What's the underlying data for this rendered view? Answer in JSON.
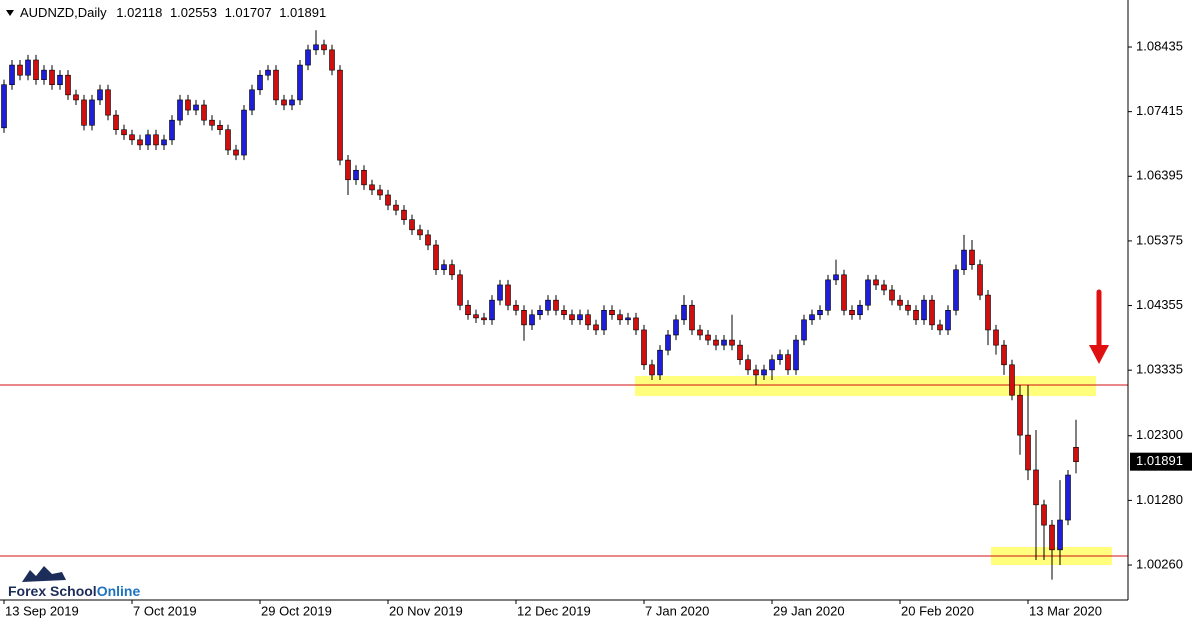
{
  "chart_data": {
    "type": "candlestick",
    "symbol": "AUDNZD,Daily",
    "up_color": "#1f1fd8",
    "down_color": "#d01010",
    "level_color": "#d01010",
    "zone_color": "#ffff66",
    "ylim": [
      0.99708,
      1.09177
    ],
    "yticks": [
      1.08435,
      1.07415,
      1.06395,
      1.05375,
      1.04355,
      1.03335,
      {
        "value": 1.023,
        "label": "1.02300"
      },
      {
        "value": 1.0128,
        "label": "1.01280"
      },
      {
        "value": 1.0026,
        "label": "1.00260"
      }
    ],
    "levels": [
      1.03101,
      1.00403
    ],
    "zones": [
      {
        "low": 1.02927,
        "high": 1.03243
      },
      {
        "low": 1.0026,
        "high": 1.00545
      }
    ],
    "watermark": [
      "Forex School",
      "Online"
    ],
    "categories": [
      "13 Sep 2019",
      null,
      null,
      null,
      null,
      null,
      null,
      null,
      null,
      null,
      null,
      null,
      null,
      null,
      null,
      null,
      "7 Oct 2019",
      null,
      null,
      null,
      null,
      null,
      null,
      null,
      null,
      null,
      null,
      null,
      null,
      null,
      null,
      null,
      "29 Oct 2019",
      null,
      null,
      null,
      null,
      null,
      null,
      null,
      null,
      null,
      null,
      null,
      null,
      null,
      null,
      null,
      "20 Nov 2019",
      null,
      null,
      null,
      null,
      null,
      null,
      null,
      null,
      null,
      null,
      null,
      null,
      null,
      null,
      null,
      "12 Dec 2019",
      null,
      null,
      null,
      null,
      null,
      null,
      null,
      null,
      null,
      null,
      null,
      null,
      null,
      null,
      null,
      "7 Jan 2020",
      null,
      null,
      null,
      null,
      null,
      null,
      null,
      null,
      null,
      null,
      null,
      null,
      null,
      null,
      null,
      "29 Jan 2020",
      null,
      null,
      null,
      null,
      null,
      null,
      null,
      null,
      null,
      null,
      null,
      null,
      null,
      null,
      null,
      "20 Feb 2020",
      null,
      null,
      null,
      null,
      null,
      null,
      null,
      null,
      null,
      null,
      null,
      null,
      null,
      null,
      null,
      "13 Mar 2020",
      null,
      null,
      null,
      null,
      null,
      null
    ],
    "open": [
      1.0716,
      1.0784,
      1.0815,
      1.0799,
      1.0823,
      1.0792,
      1.0807,
      1.0784,
      1.0799,
      1.0768,
      1.076,
      1.072,
      1.076,
      1.0776,
      1.0736,
      1.0713,
      1.0705,
      1.0697,
      1.0689,
      1.0705,
      1.0689,
      1.0697,
      1.0728,
      1.076,
      1.0744,
      1.0752,
      1.0728,
      1.072,
      1.0713,
      1.0681,
      1.0673,
      1.0744,
      1.0776,
      1.0799,
      1.0807,
      1.076,
      1.0752,
      1.076,
      1.0815,
      1.0839,
      1.0847,
      1.0839,
      1.0807,
      1.0665,
      1.0634,
      1.0649,
      1.0626,
      1.0618,
      1.061,
      1.0594,
      1.0586,
      1.0571,
      1.0555,
      1.0547,
      1.0531,
      1.0492,
      1.05,
      1.0484,
      1.0436,
      1.0421,
      1.0416,
      1.0413,
      1.0444,
      1.0468,
      1.0436,
      1.0428,
      1.0405,
      1.0421,
      1.0428,
      1.0444,
      1.0428,
      1.0421,
      1.0413,
      1.0421,
      1.0405,
      1.0397,
      1.0428,
      1.0421,
      1.0413,
      1.0416,
      1.0397,
      1.0342,
      1.0326,
      1.0365,
      1.0389,
      1.0413,
      1.0436,
      1.0397,
      1.0389,
      1.0381,
      1.0373,
      1.0381,
      1.0373,
      1.035,
      1.0334,
      1.0326,
      1.0334,
      1.035,
      1.0358,
      1.0334,
      1.0381,
      1.0413,
      1.0421,
      1.0428,
      1.0476,
      1.0484,
      1.0428,
      1.0421,
      1.0436,
      1.0476,
      1.0468,
      1.046,
      1.0444,
      1.0436,
      1.0428,
      1.0413,
      1.0444,
      1.0405,
      1.0397,
      1.0428,
      1.0492,
      1.0523,
      1.05,
      1.0452,
      1.0397,
      1.0373,
      1.0342,
      1.0294,
      1.0231,
      1.0176,
      1.0121,
      1.0089,
      1.005,
      1.0097,
      1.02118
    ],
    "high": [
      1.0792,
      1.0823,
      1.0823,
      1.0831,
      1.0831,
      1.0815,
      1.0815,
      1.0807,
      1.0807,
      1.0776,
      1.0768,
      1.0768,
      1.0784,
      1.0784,
      1.0744,
      1.0721,
      1.0713,
      1.0705,
      1.0713,
      1.0713,
      1.0705,
      1.0736,
      1.0768,
      1.0768,
      1.076,
      1.076,
      1.0736,
      1.0728,
      1.0721,
      1.0689,
      1.0752,
      1.0784,
      1.0807,
      1.0815,
      1.0815,
      1.0768,
      1.0768,
      1.0823,
      1.0847,
      1.087,
      1.0855,
      1.0847,
      1.0815,
      1.0673,
      1.0657,
      1.0657,
      1.0634,
      1.0626,
      1.0618,
      1.0602,
      1.0594,
      1.0579,
      1.0563,
      1.0555,
      1.0539,
      1.0508,
      1.0508,
      1.0492,
      1.0444,
      1.0429,
      1.0424,
      1.0452,
      1.0476,
      1.0476,
      1.0444,
      1.0436,
      1.0429,
      1.0436,
      1.0452,
      1.0452,
      1.0436,
      1.0429,
      1.0429,
      1.0429,
      1.0413,
      1.0436,
      1.0436,
      1.0429,
      1.0424,
      1.0424,
      1.0405,
      1.035,
      1.0373,
      1.0397,
      1.0421,
      1.0452,
      1.0444,
      1.0405,
      1.0397,
      1.0389,
      1.0389,
      1.0421,
      1.0381,
      1.0358,
      1.0342,
      1.0342,
      1.0358,
      1.0366,
      1.0366,
      1.0389,
      1.0421,
      1.0429,
      1.0436,
      1.0484,
      1.0508,
      1.0492,
      1.0436,
      1.0444,
      1.0484,
      1.0484,
      1.0476,
      1.0468,
      1.0452,
      1.0444,
      1.0436,
      1.0452,
      1.0452,
      1.0413,
      1.0436,
      1.05,
      1.0547,
      1.0539,
      1.0508,
      1.046,
      1.0405,
      1.0381,
      1.035,
      1.031,
      1.031,
      1.0239,
      1.0129,
      1.0097,
      1.016,
      1.0176,
      1.02553
    ],
    "low": [
      1.0708,
      1.0776,
      1.0791,
      1.0791,
      1.0784,
      1.0784,
      1.0776,
      1.0776,
      1.076,
      1.0752,
      1.0712,
      1.0712,
      1.0752,
      1.0728,
      1.0705,
      1.0697,
      1.0689,
      1.0681,
      1.0681,
      1.0681,
      1.0681,
      1.0689,
      1.072,
      1.0736,
      1.0736,
      1.072,
      1.0712,
      1.0705,
      1.0673,
      1.0665,
      1.0665,
      1.0736,
      1.0768,
      1.0791,
      1.0752,
      1.0744,
      1.0744,
      1.0752,
      1.0807,
      1.0831,
      1.0831,
      1.0799,
      1.0657,
      1.061,
      1.0626,
      1.0618,
      1.061,
      1.0602,
      1.0586,
      1.0578,
      1.0563,
      1.0547,
      1.0539,
      1.0523,
      1.0484,
      1.0484,
      1.0476,
      1.0428,
      1.0413,
      1.0408,
      1.0405,
      1.0405,
      1.0436,
      1.0428,
      1.042,
      1.038,
      1.0397,
      1.0413,
      1.042,
      1.042,
      1.0413,
      1.0405,
      1.0405,
      1.0397,
      1.0389,
      1.0389,
      1.0413,
      1.0405,
      1.0405,
      1.0389,
      1.0334,
      1.0318,
      1.0318,
      1.0357,
      1.0381,
      1.0405,
      1.0389,
      1.0381,
      1.0373,
      1.0365,
      1.0365,
      1.0365,
      1.0342,
      1.0326,
      1.031,
      1.0318,
      1.0318,
      1.0342,
      1.0326,
      1.0326,
      1.0373,
      1.0405,
      1.0413,
      1.042,
      1.0468,
      1.042,
      1.0413,
      1.0413,
      1.0428,
      1.046,
      1.0452,
      1.0436,
      1.0428,
      1.042,
      1.0405,
      1.0405,
      1.0397,
      1.0389,
      1.0389,
      1.042,
      1.0484,
      1.0492,
      1.0444,
      1.0373,
      1.0358,
      1.0326,
      1.0286,
      1.02,
      1.016,
      1.0034,
      1.0034,
      1.0003,
      1.0026,
      1.0089,
      1.01707
    ],
    "close": [
      1.0784,
      1.0815,
      1.0799,
      1.0823,
      1.0792,
      1.0807,
      1.0784,
      1.0799,
      1.0768,
      1.076,
      1.072,
      1.076,
      1.0776,
      1.0736,
      1.0713,
      1.0705,
      1.0697,
      1.0689,
      1.0705,
      1.0689,
      1.0697,
      1.0728,
      1.076,
      1.0744,
      1.0752,
      1.0728,
      1.072,
      1.0713,
      1.0681,
      1.0673,
      1.0744,
      1.0776,
      1.0799,
      1.0807,
      1.076,
      1.0752,
      1.076,
      1.0815,
      1.0839,
      1.0847,
      1.0839,
      1.0807,
      1.0665,
      1.0634,
      1.0649,
      1.0626,
      1.0618,
      1.061,
      1.0594,
      1.0586,
      1.0571,
      1.0555,
      1.0547,
      1.0531,
      1.0492,
      1.05,
      1.0484,
      1.0436,
      1.0421,
      1.0416,
      1.0413,
      1.0444,
      1.0468,
      1.0436,
      1.0428,
      1.0405,
      1.0421,
      1.0428,
      1.0444,
      1.0428,
      1.0421,
      1.0413,
      1.0421,
      1.0405,
      1.0397,
      1.0428,
      1.0421,
      1.0413,
      1.0416,
      1.0397,
      1.0342,
      1.0326,
      1.0365,
      1.0389,
      1.0413,
      1.0436,
      1.0397,
      1.0389,
      1.0381,
      1.0373,
      1.0381,
      1.0373,
      1.035,
      1.0334,
      1.0326,
      1.0334,
      1.035,
      1.0358,
      1.0334,
      1.0381,
      1.0413,
      1.0421,
      1.0428,
      1.0476,
      1.0484,
      1.0428,
      1.0421,
      1.0436,
      1.0476,
      1.0468,
      1.046,
      1.0444,
      1.0436,
      1.0428,
      1.0413,
      1.0444,
      1.0405,
      1.0397,
      1.0428,
      1.0492,
      1.0523,
      1.05,
      1.0452,
      1.0397,
      1.0373,
      1.0342,
      1.0294,
      1.0231,
      1.0176,
      1.0121,
      1.0089,
      1.005,
      1.0097,
      1.0168,
      1.01891
    ]
  }
}
